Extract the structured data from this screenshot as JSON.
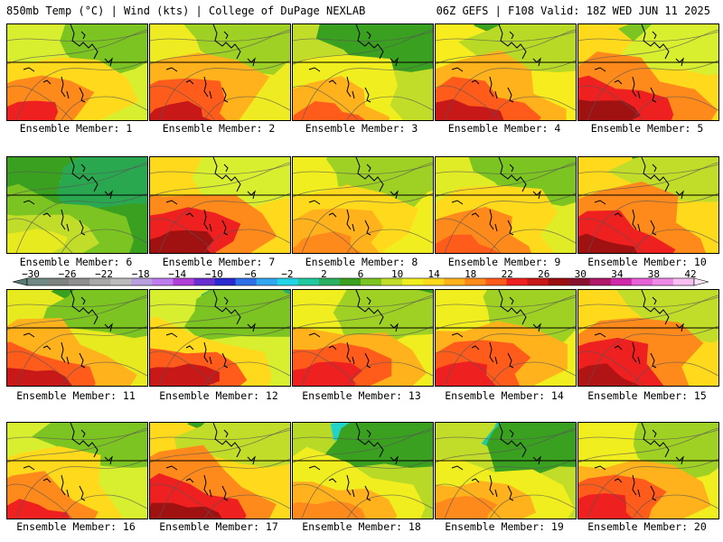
{
  "header": {
    "left": "850mb Temp (°C) | Wind (kts) | College of DuPage NEXLAB",
    "right": "06Z GEFS | F108 Valid: 18Z WED JUN 11 2025"
  },
  "colorbar": {
    "labels": [
      "−30",
      "−26",
      "−22",
      "−18",
      "−14",
      "−10",
      "−6",
      "−2",
      "2",
      "6",
      "10",
      "14",
      "18",
      "22",
      "26",
      "30",
      "34",
      "38",
      "42"
    ],
    "colors": [
      "#6f8a84",
      "#7e837f",
      "#8f8f8f",
      "#a9a9a9",
      "#bcbcbc",
      "#b79fe0",
      "#c07bf0",
      "#b23fd8",
      "#6a2fd0",
      "#2a2ad0",
      "#2f6fe8",
      "#33a6f0",
      "#22d4e8",
      "#22c8a0",
      "#2ab060",
      "#3aa020",
      "#7cc421",
      "#c2dd29",
      "#f1ee1f",
      "#ffd91c",
      "#ffb21c",
      "#ff8a1c",
      "#ff5c1c",
      "#ef2020",
      "#c81818",
      "#9a1010",
      "#8a1030",
      "#b0186a",
      "#d028a8",
      "#e860d8",
      "#f08ae8",
      "#f8c0f0"
    ]
  },
  "panels": [
    {
      "caption": "Ensemble Member: 1",
      "palette": [
        "#2f9a2a",
        "#7cc421",
        "#d8ef30",
        "#ffd91c",
        "#ff8a1c",
        "#ef2020"
      ]
    },
    {
      "caption": "Ensemble Member: 2",
      "palette": [
        "#3aa020",
        "#9fd024",
        "#efeb22",
        "#ffb21c",
        "#ff5c1c",
        "#c81818"
      ]
    },
    {
      "caption": "Ensemble Member: 3",
      "palette": [
        "#22c8a0",
        "#3aa020",
        "#c2dd29",
        "#f1ee1f",
        "#ffb21c",
        "#ff5c1c"
      ]
    },
    {
      "caption": "Ensemble Member: 4",
      "palette": [
        "#3aa020",
        "#b8da26",
        "#f7ec1d",
        "#ffb21c",
        "#ff5c1c",
        "#c81818"
      ]
    },
    {
      "caption": "Ensemble Member: 5",
      "palette": [
        "#7cc421",
        "#d8ef30",
        "#ffd91c",
        "#ff8a1c",
        "#ef2020",
        "#a01212"
      ]
    },
    {
      "caption": "Ensemble Member: 6",
      "palette": [
        "#22d4b0",
        "#2aa850",
        "#3aa020",
        "#7cc421",
        "#c2dd29",
        "#e8ea20"
      ]
    },
    {
      "caption": "Ensemble Member: 7",
      "palette": [
        "#7cc421",
        "#d8ef30",
        "#ffd91c",
        "#ff8a1c",
        "#ef2020",
        "#a01212"
      ]
    },
    {
      "caption": "Ensemble Member: 8",
      "palette": [
        "#3aa020",
        "#9fd024",
        "#f1ee1f",
        "#ffd91c",
        "#ffb21c",
        "#ff8a1c"
      ]
    },
    {
      "caption": "Ensemble Member: 9",
      "palette": [
        "#2a9a40",
        "#7cc421",
        "#e0ec26",
        "#ffd91c",
        "#ff8a1c",
        "#ff5c1c"
      ]
    },
    {
      "caption": "Ensemble Member: 10",
      "palette": [
        "#3aa020",
        "#c2dd29",
        "#ffd91c",
        "#ff8a1c",
        "#ef2020",
        "#a01212"
      ]
    },
    {
      "caption": "Ensemble Member: 11",
      "palette": [
        "#3aa020",
        "#7cc421",
        "#e8ea20",
        "#ffb21c",
        "#ff5c1c",
        "#c81818"
      ]
    },
    {
      "caption": "Ensemble Member: 12",
      "palette": [
        "#22b070",
        "#7cc421",
        "#d8ef30",
        "#ffd91c",
        "#ff5c1c",
        "#c81818"
      ]
    },
    {
      "caption": "Ensemble Member: 13",
      "palette": [
        "#3aa020",
        "#9fd024",
        "#f1ee1f",
        "#ffb21c",
        "#ff5c1c",
        "#ef2020"
      ]
    },
    {
      "caption": "Ensemble Member: 14",
      "palette": [
        "#3aa020",
        "#9fd024",
        "#f1ee1f",
        "#ffb21c",
        "#ff5c1c",
        "#ef2020"
      ]
    },
    {
      "caption": "Ensemble Member: 15",
      "palette": [
        "#3aa020",
        "#c2dd29",
        "#ffd91c",
        "#ff8a1c",
        "#ef2020",
        "#b01414"
      ]
    },
    {
      "caption": "Ensemble Member: 16",
      "palette": [
        "#2aa860",
        "#7cc421",
        "#d8ef30",
        "#ffd91c",
        "#ff8a1c",
        "#ef2020"
      ]
    },
    {
      "caption": "Ensemble Member: 17",
      "palette": [
        "#3aa020",
        "#c2dd29",
        "#ffd91c",
        "#ff8a1c",
        "#ef2020",
        "#a01212"
      ]
    },
    {
      "caption": "Ensemble Member: 18",
      "palette": [
        "#22d4c8",
        "#3aa020",
        "#b8da26",
        "#f1ee1f",
        "#ffb21c",
        "#ff8a1c"
      ]
    },
    {
      "caption": "Ensemble Member: 19",
      "palette": [
        "#22c8a0",
        "#3aa020",
        "#c2dd29",
        "#f1ee1f",
        "#ffb21c",
        "#ff8a1c"
      ]
    },
    {
      "caption": "Ensemble Member: 20",
      "palette": [
        "#3aa020",
        "#9fd024",
        "#f1ee1f",
        "#ffb21c",
        "#ff5c1c",
        "#ef2020"
      ]
    }
  ]
}
